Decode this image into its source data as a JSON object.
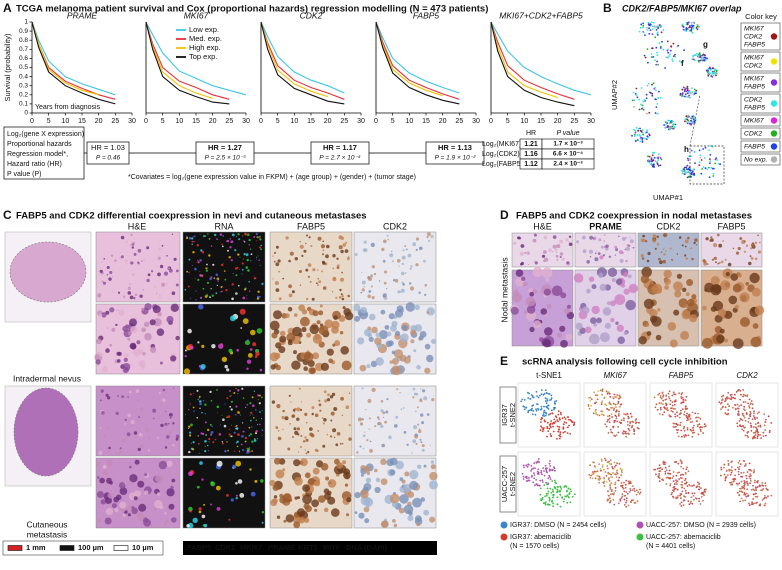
{
  "panel_a": {
    "letter": "A",
    "title": "TCGA melanoma patient survival and Cox (proportional hazards) regression modelling (N = 473 patients)",
    "model_box": [
      "Log₂(gene X expression)",
      "Proportional hazards",
      "Regression model*,",
      "Hazard ratio (HR)",
      "P value (P)"
    ],
    "hr_boxes": [
      [
        "HR = 1.03",
        "P = 0.46"
      ],
      [
        "HR = 1.27",
        "P = 2.5 × 10⁻³"
      ],
      [
        "HR = 1.17",
        "P = 2.7 × 10⁻⁴"
      ],
      [
        "HR = 1.13",
        "P = 1.9 × 10⁻²"
      ]
    ],
    "table": {
      "header": [
        "HR",
        "P value"
      ],
      "rows": [
        [
          "Log₂(MKI67)",
          "1.21",
          "1.7 × 10⁻³"
        ],
        [
          "Log₂(CDK2)",
          "1.16",
          "6.6 × 10⁻⁴"
        ],
        [
          "Log₂(FABP5)",
          "1.12",
          "2.4 × 10⁻³"
        ]
      ]
    },
    "footnote": "*Covariates = log₂(gene expression value in FKPM) + (age group) + (gender) + (tumor stage)"
  },
  "chart_data": [
    {
      "type": "line",
      "title": "PRAME",
      "x": [
        0,
        2,
        5,
        10,
        15,
        20,
        25,
        30
      ],
      "xlim": [
        0,
        30
      ],
      "ylim": [
        0,
        1
      ],
      "xticks": [
        0,
        5,
        10,
        15,
        20,
        25,
        30
      ],
      "yticks": [
        0,
        0.1,
        0.2,
        0.3,
        0.4,
        0.5,
        0.6,
        0.7,
        0.8,
        0.9,
        1
      ],
      "ylabel": "Survival (probability)",
      "annotation": "Years from diagnosis",
      "series": [
        {
          "color": "#3ec6e6",
          "values": [
            1,
            0.8,
            0.57,
            0.4,
            0.32,
            0.26,
            0.2,
            null
          ]
        },
        {
          "color": "#e8303a",
          "values": [
            1,
            0.76,
            0.5,
            0.35,
            0.27,
            0.2,
            0.15,
            null
          ]
        },
        {
          "color": "#f2c200",
          "values": [
            1,
            0.76,
            0.48,
            0.33,
            0.25,
            0.2,
            null,
            null
          ]
        },
        {
          "color": "#111111",
          "values": [
            1,
            0.72,
            0.45,
            0.3,
            0.22,
            0.15,
            0.1,
            null
          ]
        }
      ]
    },
    {
      "type": "line",
      "title": "MKI67",
      "x": [
        0,
        2,
        5,
        10,
        15,
        20,
        25,
        30
      ],
      "xlim": [
        0,
        30
      ],
      "ylim": [
        0,
        1
      ],
      "xticks": [
        0,
        5,
        10,
        15,
        20,
        25,
        30
      ],
      "series": [
        {
          "name": "Low exp.",
          "color": "#3ec6e6",
          "values": [
            1,
            0.86,
            0.66,
            0.46,
            0.38,
            0.3,
            0.25,
            0.2
          ]
        },
        {
          "name": "Med. exp.",
          "color": "#e8303a",
          "values": [
            1,
            0.76,
            0.5,
            0.35,
            0.28,
            0.2,
            0.15,
            null
          ]
        },
        {
          "name": "High exp.",
          "color": "#f2c200",
          "values": [
            1,
            0.73,
            0.45,
            0.3,
            0.22,
            0.16,
            null,
            null
          ]
        },
        {
          "name": "Top exp.",
          "color": "#111111",
          "values": [
            1,
            0.7,
            0.4,
            0.25,
            0.18,
            0.12,
            0.1,
            null
          ]
        }
      ]
    },
    {
      "type": "line",
      "title": "CDK2",
      "x": [
        0,
        2,
        5,
        10,
        15,
        20,
        25,
        30
      ],
      "xlim": [
        0,
        30
      ],
      "ylim": [
        0,
        1
      ],
      "xticks": [
        0,
        5,
        10,
        15,
        20,
        25,
        30
      ],
      "series": [
        {
          "color": "#3ec6e6",
          "values": [
            1,
            0.84,
            0.62,
            0.45,
            0.36,
            0.3,
            0.22,
            null
          ]
        },
        {
          "color": "#e8303a",
          "values": [
            1,
            0.77,
            0.52,
            0.36,
            0.28,
            0.22,
            0.15,
            null
          ]
        },
        {
          "color": "#f2c200",
          "values": [
            1,
            0.75,
            0.47,
            0.32,
            0.24,
            0.18,
            null,
            null
          ]
        },
        {
          "color": "#111111",
          "values": [
            1,
            0.7,
            0.42,
            0.27,
            0.2,
            0.13,
            0.1,
            null
          ]
        }
      ]
    },
    {
      "type": "line",
      "title": "FABP5",
      "x": [
        0,
        2,
        5,
        10,
        15,
        20,
        25,
        30
      ],
      "xlim": [
        0,
        30
      ],
      "ylim": [
        0,
        1
      ],
      "xticks": [
        0,
        5,
        10,
        15,
        20,
        25,
        30
      ],
      "series": [
        {
          "color": "#3ec6e6",
          "values": [
            1,
            0.83,
            0.6,
            0.44,
            0.35,
            0.28,
            0.22,
            null
          ]
        },
        {
          "color": "#e8303a",
          "values": [
            1,
            0.78,
            0.52,
            0.36,
            0.28,
            0.21,
            0.15,
            null
          ]
        },
        {
          "color": "#f2c200",
          "values": [
            1,
            0.75,
            0.48,
            0.33,
            0.25,
            0.19,
            null,
            null
          ]
        },
        {
          "color": "#111111",
          "values": [
            1,
            0.72,
            0.44,
            0.28,
            0.2,
            0.14,
            0.1,
            null
          ]
        }
      ]
    },
    {
      "type": "line",
      "title": "MKI67+CDK2+FABP5",
      "x": [
        0,
        2,
        5,
        10,
        15,
        20,
        25,
        30
      ],
      "xlim": [
        0,
        30
      ],
      "ylim": [
        0,
        1
      ],
      "xticks": [
        0,
        5,
        10,
        15,
        20,
        25,
        30
      ],
      "series": [
        {
          "color": "#3ec6e6",
          "values": [
            1,
            0.87,
            0.68,
            0.5,
            0.4,
            0.32,
            0.25,
            0.2
          ]
        },
        {
          "color": "#e8303a",
          "values": [
            1,
            0.78,
            0.52,
            0.36,
            0.28,
            0.21,
            0.15,
            null
          ]
        },
        {
          "color": "#f2c200",
          "values": [
            1,
            0.73,
            0.45,
            0.3,
            0.23,
            0.17,
            null,
            null
          ]
        },
        {
          "color": "#111111",
          "values": [
            1,
            0.68,
            0.4,
            0.25,
            0.17,
            0.12,
            0.08,
            null
          ]
        }
      ]
    }
  ],
  "panel_b": {
    "letter": "B",
    "title": "CDK2/FABP5/MKI67 overlap",
    "axis_y": "UMAP#2",
    "axis_x": "UMAP#1",
    "cluster_labels": [
      "f",
      "g",
      "h"
    ],
    "key_title": "Color key",
    "key": [
      {
        "label": [
          "MKI67",
          "CDK2",
          "FABP5"
        ],
        "color": "#a01616"
      },
      {
        "label": [
          "MKI67",
          "CDK2"
        ],
        "color": "#f2e200"
      },
      {
        "label": [
          "MKI67",
          "FABP5"
        ],
        "color": "#8a2be2"
      },
      {
        "label": [
          "CDK2",
          "FABP5"
        ],
        "color": "#2ee6e6"
      },
      {
        "label": [
          "MKI67"
        ],
        "color": "#e020e0"
      },
      {
        "label": [
          "CDK2"
        ],
        "color": "#20b020"
      },
      {
        "label": [
          "FABP5"
        ],
        "color": "#2040f0"
      },
      {
        "label": [
          "No exp."
        ],
        "color": "#b0b0b0"
      }
    ]
  },
  "panel_c": {
    "letter": "C",
    "title": "FABP5 and CDK2 differential coexpression in nevi and cutaneous metastases",
    "columns": [
      "H&E",
      "RNA",
      "FABP5",
      "CDK2"
    ],
    "rows": [
      "Intradermal nevus",
      [
        "Cutaneous",
        "metastasis"
      ]
    ],
    "scale_bars": [
      {
        "label": "1 mm",
        "color": "#d42020"
      },
      {
        "label": "100 µm",
        "color": "#111111"
      },
      {
        "label": "10 µm",
        "color": "#ffffff"
      }
    ],
    "rna_legend": [
      {
        "label": "FABP5",
        "color": "#ff3030"
      },
      {
        "label": "CDK2",
        "color": "#30d8f0"
      },
      {
        "label": "MKI67",
        "color": "#e040e0"
      },
      {
        "label": "PRAME",
        "color": "#30d030"
      },
      {
        "label": "KRT5",
        "color": "#f5c400"
      },
      {
        "label": "MITF",
        "color": "#4a6cf0"
      },
      {
        "label": "DNA (DAPI)",
        "color": "#ffffff"
      }
    ]
  },
  "panel_d": {
    "letter": "D",
    "title": "FABP5 and CDK2 coexpression in nodal metastases",
    "columns": [
      {
        "label": "H&E",
        "color": "#111111"
      },
      {
        "label": "PRAME",
        "color": "#d020d0"
      },
      {
        "label": "CDK2",
        "color": "#111111"
      },
      {
        "label": "FABP5",
        "color": "#111111"
      }
    ],
    "row": "Nodal metastasis"
  },
  "panel_e": {
    "letter": "E",
    "title": "scRNA analysis following cell cycle inhibition",
    "columns": [
      "t-SNE1",
      "MKI67",
      "FABP5",
      "CDK2"
    ],
    "rows": [
      [
        "IGR37",
        "t-SNE2"
      ],
      [
        "UACC-257",
        "t-SNE2"
      ]
    ],
    "legend": [
      {
        "label": [
          "IGR37: DMSO (N = 2454 cells)"
        ],
        "color": "#3a86c8"
      },
      {
        "label": [
          "IGR37: abemaciclib",
          "(N = 1570 cells)"
        ],
        "color": "#d63a2a"
      },
      {
        "label": [
          "UACC-257: DMSO (N = 2939 cells)"
        ],
        "color": "#b050b0"
      },
      {
        "label": [
          "UACC-257: abemaciclib",
          "(N = 4401 cells)"
        ],
        "color": "#3cc040"
      }
    ]
  }
}
